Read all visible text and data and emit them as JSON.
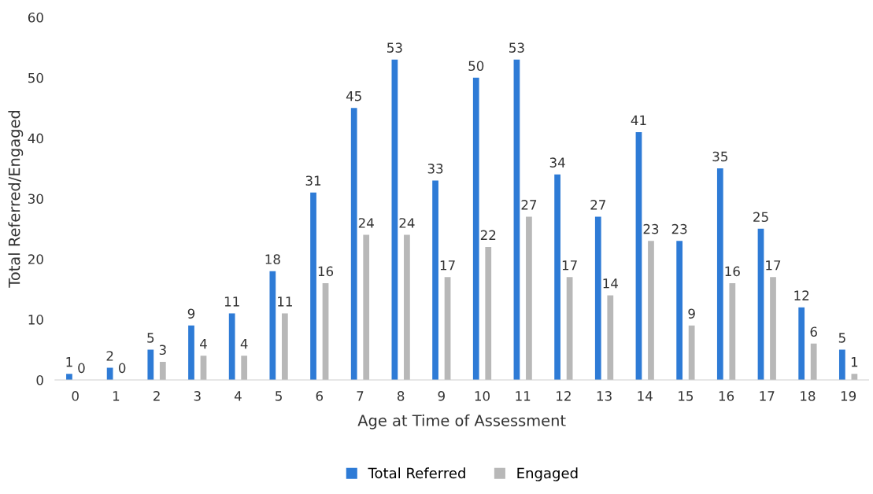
{
  "chart_data": {
    "type": "bar",
    "xlabel": "Age at Time of Assessment",
    "ylabel": "Total Referred/Engaged",
    "categories": [
      "0",
      "1",
      "2",
      "3",
      "4",
      "5",
      "6",
      "7",
      "8",
      "9",
      "10",
      "11",
      "12",
      "13",
      "14",
      "15",
      "16",
      "17",
      "18",
      "19"
    ],
    "series": [
      {
        "name": "Total Referred",
        "color": "#2e7bd6",
        "values": [
          1,
          2,
          5,
          9,
          11,
          18,
          31,
          45,
          53,
          33,
          50,
          53,
          34,
          27,
          41,
          23,
          35,
          25,
          12,
          5
        ]
      },
      {
        "name": "Engaged",
        "color": "#b8b8b8",
        "values": [
          0,
          0,
          3,
          4,
          4,
          11,
          16,
          24,
          24,
          17,
          22,
          27,
          17,
          14,
          23,
          9,
          16,
          17,
          6,
          1
        ]
      }
    ],
    "ylim": [
      0,
      60
    ],
    "yticks": [
      0,
      10,
      20,
      30,
      40,
      50,
      60
    ],
    "grid": false,
    "legend": "bottom",
    "data_labels": true
  }
}
